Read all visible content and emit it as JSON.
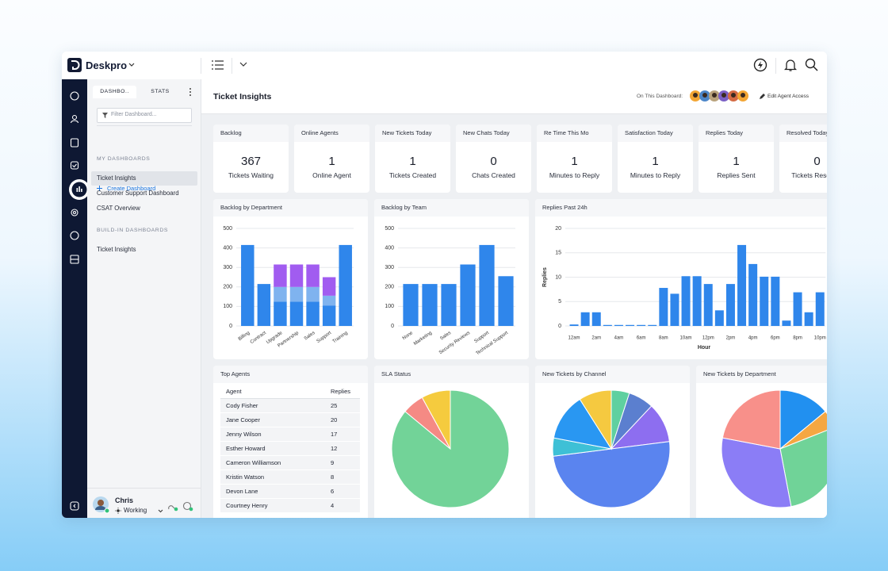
{
  "app": {
    "name": "Deskpro"
  },
  "sidebar": {
    "tabs": [
      "DASHBO..",
      "STATS"
    ],
    "filter_placeholder": "Filter Dashboard...",
    "create": "Create Dashboard",
    "sections": [
      {
        "title": "MY DASHBOARDS",
        "items": [
          "Ticket Insights",
          "Customer Support Dashboard",
          "CSAT Overview"
        ]
      },
      {
        "title": "BUILD-IN DASHBOARDS",
        "items": [
          "Ticket Insights"
        ]
      }
    ],
    "user": {
      "name": "Chris",
      "status": "Working"
    }
  },
  "header": {
    "title": "Ticket Insights",
    "on_dashboard": "On This Dashboard:",
    "edit": "Edit Agent Access"
  },
  "stats": [
    {
      "title": "Backlog",
      "value": 367,
      "label": "Tickets Waiting"
    },
    {
      "title": "Online Agents",
      "value": 1,
      "label": "Online Agent"
    },
    {
      "title": "New Tickets Today",
      "value": 1,
      "label": "Tickets Created"
    },
    {
      "title": "New Chats Today",
      "value": 0,
      "label": "Chats Created"
    },
    {
      "title": "Re Time This Mo",
      "value": 1,
      "label": "Minutes to Reply"
    },
    {
      "title": "Satisfaction Today",
      "value": 1,
      "label": "Minutes to Reply"
    },
    {
      "title": "Replies Today",
      "value": 1,
      "label": "Replies Sent"
    },
    {
      "title": "Resolved Today",
      "value": 0,
      "label": "Tickets Resolved"
    }
  ],
  "chart_data": [
    {
      "type": "bar",
      "title": "Backlog by Department",
      "stacked": true,
      "categories": [
        "Billing",
        "Contract",
        "Upgrade",
        "Partnership",
        "Sales",
        "Support",
        "Training"
      ],
      "series": [
        {
          "color": "#2f86eb",
          "values": [
            415,
            215,
            125,
            125,
            125,
            105,
            415
          ]
        },
        {
          "color": "#7fb3ef",
          "values": [
            null,
            null,
            75,
            75,
            75,
            50,
            null
          ]
        },
        {
          "color": "#a15cf0",
          "values": [
            null,
            null,
            115,
            115,
            115,
            95,
            null
          ]
        }
      ],
      "ylim": [
        0,
        500
      ],
      "yticks": [
        0,
        100,
        200,
        300,
        400,
        500
      ],
      "grid": true
    },
    {
      "type": "bar",
      "title": "Backlog by Team",
      "categories": [
        "None",
        "Marketing",
        "Sales",
        "Security Reviews",
        "Support",
        "Technical Support"
      ],
      "values": [
        215,
        215,
        215,
        315,
        415,
        255
      ],
      "color": "#2f86eb",
      "ylim": [
        0,
        500
      ],
      "yticks": [
        0,
        100,
        200,
        300,
        400,
        500
      ],
      "grid": true
    },
    {
      "type": "bar",
      "title": "Replies Past 24h",
      "xlabel": "Hour",
      "ylabel": "Replies",
      "categories": [
        "12am",
        null,
        "2am",
        null,
        "4am",
        null,
        "6am",
        null,
        "8am",
        null,
        "10am",
        null,
        "12pm",
        null,
        "2pm",
        null,
        "4pm",
        null,
        "6pm",
        null,
        "8pm",
        null,
        "10pm"
      ],
      "values": [
        0.3,
        2.8,
        2.8,
        0.2,
        0.2,
        0.2,
        0.2,
        0.2,
        7.8,
        6.6,
        10.2,
        10.2,
        8.6,
        3.2,
        8.6,
        16.6,
        12.7,
        10.1,
        10.1,
        1.1,
        6.9,
        2.8,
        6.9
      ],
      "color": "#2f86eb",
      "ylim": [
        0,
        20
      ],
      "yticks": [
        0,
        5,
        10,
        15,
        20
      ],
      "grid": true
    },
    {
      "type": "pie",
      "title": "SLA Status",
      "values": [
        86,
        6,
        8
      ],
      "colors": [
        "#72d398",
        "#f58a84",
        "#f5cb3e"
      ]
    },
    {
      "type": "pie",
      "title": "New Tickets by Channel",
      "values": [
        5,
        7,
        11,
        50,
        5,
        13,
        9
      ],
      "colors": [
        "#5fd0a0",
        "#5b7fcf",
        "#8d6ef0",
        "#5a84ef",
        "#3ec0d6",
        "#2997f2",
        "#f5c940"
      ]
    },
    {
      "type": "pie",
      "title": "New Tickets by Department",
      "values": [
        14,
        5,
        28,
        31,
        22
      ],
      "colors": [
        "#2190f0",
        "#f5a742",
        "#70d398",
        "#8b7df6",
        "#f8908a"
      ]
    }
  ],
  "table": {
    "title": "Top Agents",
    "columns": [
      "Agent",
      "Replies"
    ],
    "rows": [
      [
        "Cody Fisher",
        25
      ],
      [
        "Jane Cooper",
        20
      ],
      [
        "Jenny Wilson",
        17
      ],
      [
        "Esther Howard",
        12
      ],
      [
        "Cameron Williamson",
        9
      ],
      [
        "Kristin Watson",
        8
      ],
      [
        "Devon Lane",
        6
      ],
      [
        "Courtney Henry",
        4
      ]
    ]
  }
}
